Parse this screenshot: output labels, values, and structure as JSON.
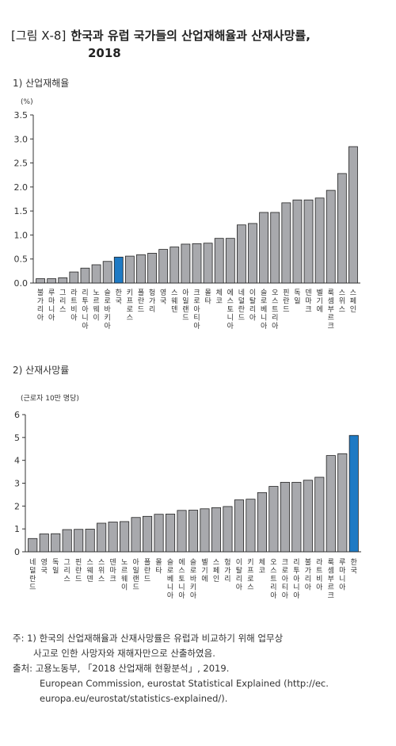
{
  "figure": {
    "number": "[그림 Ⅹ-8]",
    "title": "한국과 유럽 국가들의 산업재해율과 산재사망률,",
    "year": "2018"
  },
  "colors": {
    "bar": "#a8a9ad",
    "highlight": "#1e7ac4",
    "stroke": "#222222",
    "axis": "#333333"
  },
  "chart_data": [
    {
      "type": "bar",
      "title": "1) 산업재해율",
      "ylabel": "(%)",
      "ylim": [
        0,
        3.5
      ],
      "yticks": [
        "0.0",
        "0.5",
        "1.0",
        "1.5",
        "2.0",
        "2.5",
        "3.0",
        "3.5"
      ],
      "highlight": "한국",
      "categories": [
        "불가리아",
        "루마니아",
        "그리스",
        "라트비아",
        "리투아니아",
        "노르웨이",
        "슬로바키아",
        "한국",
        "키프로스",
        "폴란드",
        "헝가리",
        "영국",
        "스웨덴",
        "아일랜드",
        "크로아티아",
        "몰타",
        "체코",
        "에스토니아",
        "네덜란드",
        "이탈리아",
        "슬로베니아",
        "오스트리아",
        "핀란드",
        "독일",
        "덴마크",
        "벨기에",
        "룩셈부르크",
        "스위스",
        "스페인"
      ],
      "values": [
        0.09,
        0.09,
        0.11,
        0.23,
        0.31,
        0.38,
        0.45,
        0.54,
        0.56,
        0.59,
        0.62,
        0.7,
        0.75,
        0.81,
        0.82,
        0.83,
        0.93,
        0.93,
        1.21,
        1.24,
        1.47,
        1.47,
        1.67,
        1.73,
        1.73,
        1.77,
        1.93,
        2.28,
        2.84
      ]
    },
    {
      "type": "bar",
      "title": "2) 산재사망률",
      "ylabel": "(근로자 10만 명당)",
      "ylim": [
        0,
        6
      ],
      "yticks": [
        "0",
        "1",
        "2",
        "3",
        "4",
        "5",
        "6"
      ],
      "highlight": "한국",
      "categories": [
        "네덜란드",
        "영국",
        "독일",
        "그리스",
        "핀란드",
        "스웨덴",
        "스위스",
        "덴마크",
        "노르웨이",
        "아일랜드",
        "폴란드",
        "몰타",
        "슬로베니아",
        "에스토니아",
        "슬로바키아",
        "벨기에",
        "스페인",
        "헝가리",
        "이탈리아",
        "키프로스",
        "체코",
        "오스트리아",
        "크로아티아",
        "리투아니아",
        "불가리아",
        "라트비아",
        "룩셈부르크",
        "루마니아",
        "한국"
      ],
      "values": [
        0.58,
        0.78,
        0.79,
        0.97,
        0.98,
        0.99,
        1.25,
        1.3,
        1.32,
        1.5,
        1.55,
        1.64,
        1.65,
        1.81,
        1.82,
        1.88,
        1.93,
        1.98,
        2.27,
        2.3,
        2.59,
        2.86,
        3.04,
        3.04,
        3.13,
        3.26,
        4.21,
        4.29,
        5.09
      ]
    }
  ],
  "notes": {
    "line1": "주: 1) 한국의 산업재해율과 산재사망률은 유럽과 비교하기 위해 업무상",
    "line2": "사고로 인한 사망자와 재해자만으로 산출하였음.",
    "line3": "출처: 고용노동부, 「2018 산업재해 현황분석」, 2019.",
    "line4": "European Commission, eurostat Statistical Explained (http://ec.",
    "line5": "europa.eu/eurostat/statistics-explained/)."
  }
}
